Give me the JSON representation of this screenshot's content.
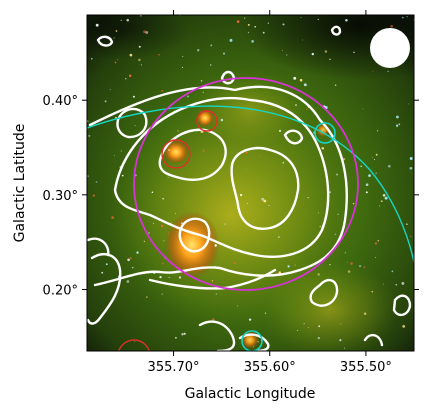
{
  "chart_data": {
    "type": "image",
    "xlabel": "Galactic Longitude",
    "ylabel": "Galactic Latitude",
    "xlim": [
      355.79,
      355.45
    ],
    "ylim": [
      0.135,
      0.49
    ],
    "x_ticks": [
      {
        "value": 355.7,
        "label": "355.70°"
      },
      {
        "value": 355.6,
        "label": "355.60°"
      },
      {
        "value": 355.5,
        "label": "355.50°"
      }
    ],
    "y_ticks": [
      {
        "value": 0.4,
        "label": "0.40°"
      },
      {
        "value": 0.3,
        "label": "0.30°"
      },
      {
        "value": 0.2,
        "label": "0.20°"
      }
    ],
    "overlays": {
      "magenta_ellipse": {
        "center": [
          355.612,
          0.313
        ],
        "semi_axes_deg": [
          0.075,
          0.108
        ],
        "color": "#d633d6"
      },
      "cyan_arc": {
        "center": [
          355.66,
          0.01
        ],
        "radius_deg": 0.38,
        "color": "#15d6c6"
      },
      "red_circles": [
        {
          "center": [
            355.703,
            0.343
          ],
          "radius_deg": 0.016
        },
        {
          "center": [
            355.665,
            0.365
          ],
          "radius_deg": 0.012
        },
        {
          "center": [
            355.744,
            0.135
          ],
          "radius_deg": 0.017
        }
      ],
      "cyan_circles": [
        {
          "center": [
            355.536,
            0.365
          ],
          "radius_deg": 0.011
        },
        {
          "center": [
            355.615,
            0.15
          ],
          "radius_deg": 0.011
        }
      ],
      "beam": {
        "center": [
          355.466,
          0.465
        ],
        "radius_deg": 0.02,
        "color": "#ffffff"
      },
      "contour_color": "#ffffff"
    },
    "colors": {
      "background_dark": "#0b1206",
      "diffuse_green": "#4f7f10",
      "diffuse_yellow": "#b9b419",
      "bright_source": "#ffb000"
    }
  }
}
